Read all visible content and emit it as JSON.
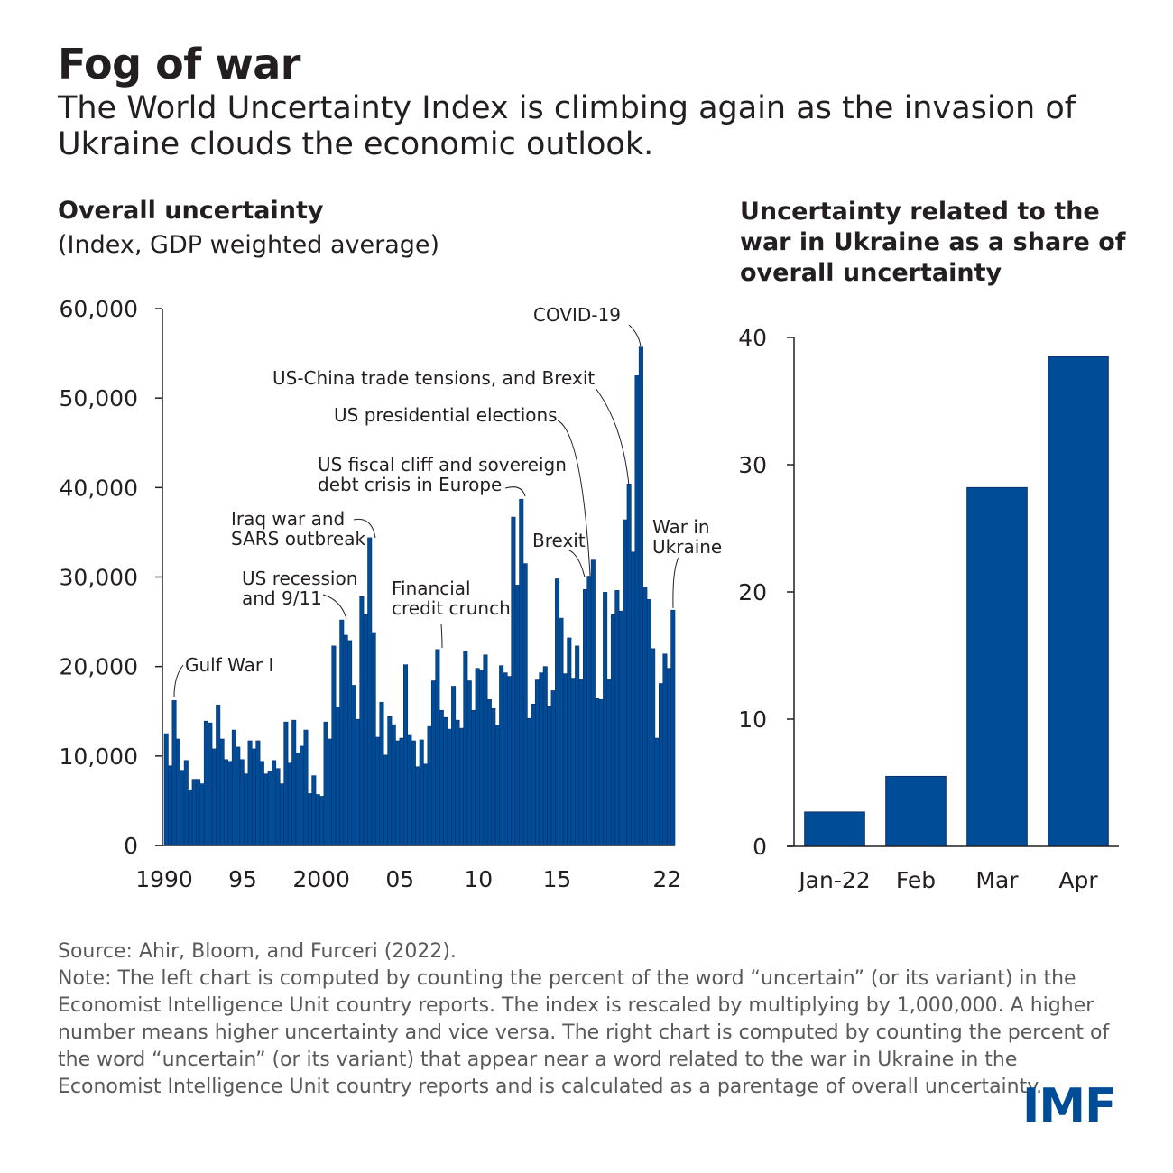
{
  "title": "Fog of war",
  "subtitle": "The World Uncertainty Index is climbing again as the invasion of Ukraine clouds the economic outlook.",
  "source": "Source: Ahir, Bloom, and Furceri (2022).",
  "note": "Note: The left chart is computed by counting the percent of the word “uncertain” (or its variant) in the Economist Intelligence Unit country reports. The index is rescaled by multiplying by 1,000,000. A higher number means higher uncertainty and vice versa. The right chart is computed by counting the percent of the word “uncertain” (or its variant) that appear near a word related to the war in Ukraine in the Economist Intelligence Unit country reports and is calculated as a parentage of overall uncertainty.",
  "logo": "IMF",
  "colors": {
    "bar": "#004c97",
    "text": "#231f20",
    "note": "#58595b"
  },
  "chart_data": [
    {
      "type": "bar",
      "title": "Overall uncertainty",
      "subtitle": "(Index, GDP weighted average)",
      "ylim": [
        0,
        60000
      ],
      "yticks": [
        0,
        10000,
        20000,
        30000,
        40000,
        50000,
        60000
      ],
      "ytick_labels": [
        "0",
        "10,000",
        "20,000",
        "30,000",
        "40,000",
        "50,000",
        "60,000"
      ],
      "xlim": [
        1990.0,
        2022.5
      ],
      "xticks": [
        1990,
        1995,
        2000,
        2005,
        2010,
        2015,
        2022
      ],
      "xtick_labels": [
        "1990",
        "95",
        "2000",
        "05",
        "10",
        "15",
        "22"
      ],
      "frequency": "quarterly, starting 1990 Q1",
      "values": [
        12500,
        8900,
        16200,
        11900,
        8400,
        9500,
        6200,
        7400,
        7400,
        6900,
        13900,
        13700,
        10800,
        15700,
        11900,
        9600,
        9400,
        12900,
        11000,
        9600,
        8000,
        11700,
        10800,
        11700,
        9400,
        8000,
        8300,
        9500,
        8600,
        6900,
        13800,
        9200,
        14000,
        10300,
        11100,
        12900,
        5800,
        7800,
        5700,
        5500,
        13800,
        11900,
        22300,
        15400,
        25200,
        23500,
        22900,
        17900,
        14100,
        27800,
        25800,
        34400,
        23800,
        12100,
        16000,
        10100,
        14400,
        13500,
        11700,
        12000,
        20200,
        12300,
        11700,
        8800,
        11800,
        9100,
        13300,
        18400,
        21900,
        15100,
        14300,
        13000,
        17800,
        14000,
        13100,
        21700,
        18400,
        15100,
        19800,
        19600,
        21300,
        16300,
        15300,
        13400,
        20100,
        19300,
        18900,
        36700,
        29100,
        38700,
        31500,
        14200,
        15800,
        18500,
        19300,
        20000,
        15600,
        17300,
        29800,
        25400,
        19200,
        23200,
        18700,
        22300,
        18600,
        28600,
        30100,
        31900,
        16400,
        16300,
        28300,
        18600,
        25800,
        28500,
        26200,
        36400,
        40400,
        32800,
        52500,
        55700,
        28900,
        27500,
        22000,
        12000,
        18100,
        21400,
        19800,
        26300
      ]
    },
    {
      "type": "bar",
      "title": "Uncertainty related to the war in Ukraine as a share of overall uncertainty",
      "categories": [
        "Jan-22",
        "Feb",
        "Mar",
        "Apr"
      ],
      "values": [
        2.7,
        5.5,
        28.2,
        38.5
      ],
      "ylim": [
        0,
        40
      ],
      "yticks": [
        0,
        10,
        20,
        30,
        40
      ],
      "ytick_labels": [
        "0",
        "10",
        "20",
        "30",
        "40"
      ]
    }
  ],
  "annotations": [
    {
      "lines": [
        "Gulf War I"
      ],
      "x": 1990.75,
      "y": 16200,
      "anchor": "start"
    },
    {
      "lines": [
        "US recession",
        "and 9/11"
      ],
      "x": 2001.75,
      "y": 25200,
      "anchor": "start"
    },
    {
      "lines": [
        "Iraq war and",
        "SARS outbreak"
      ],
      "x": 2003.25,
      "y": 34400,
      "anchor": "start"
    },
    {
      "lines": [
        "Financial",
        "credit crunch"
      ],
      "x": 2007.5,
      "y": 21900,
      "anchor": "start"
    },
    {
      "lines": [
        "US fiscal cliff and sovereign",
        "debt crisis in Europe"
      ],
      "x": 2012.5,
      "y": 38700,
      "anchor": "start"
    },
    {
      "lines": [
        "Brexit"
      ],
      "x": 2016.5,
      "y": 30100,
      "anchor": "start"
    },
    {
      "lines": [
        "US presidential elections"
      ],
      "x": 2016.75,
      "y": 31900,
      "anchor": "start"
    },
    {
      "lines": [
        "US-China trade tensions, and Brexit"
      ],
      "x": 2019.25,
      "y": 40400,
      "anchor": "start"
    },
    {
      "lines": [
        "COVID-19"
      ],
      "x": 2020.25,
      "y": 55700,
      "anchor": "start"
    },
    {
      "lines": [
        "War in",
        "Ukraine"
      ],
      "x": 2021.75,
      "y": 26300,
      "anchor": "start"
    }
  ]
}
